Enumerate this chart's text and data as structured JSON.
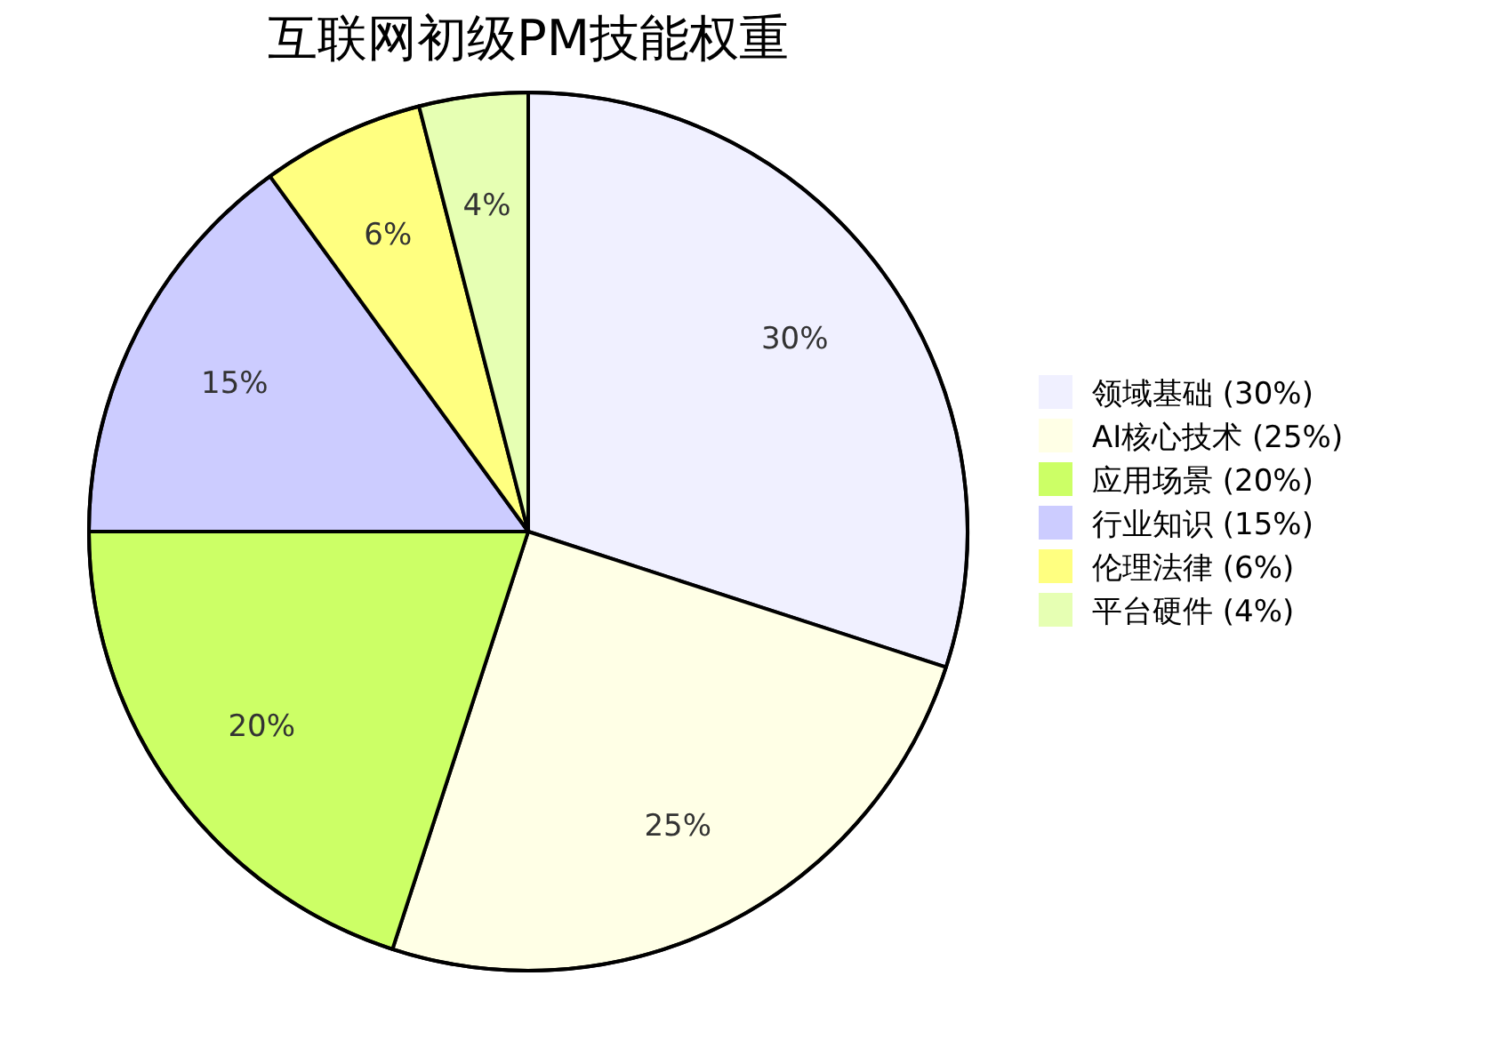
{
  "chart_data": {
    "type": "pie",
    "title": "互联网初级PM技能权重",
    "categories": [
      "领域基础 (30%)",
      "AI核心技术 (25%)",
      "应用场景 (20%)",
      "行业知识 (15%)",
      "伦理法律 (6%)",
      "平台硬件 (4%)"
    ],
    "values": [
      30,
      25,
      20,
      15,
      6,
      4
    ],
    "value_labels": [
      "30%",
      "25%",
      "20%",
      "15%",
      "6%",
      "4%"
    ],
    "colors": [
      "#f0f0ff",
      "#ffffe6",
      "#ccff66",
      "#ccccff",
      "#ffff80",
      "#e6ffb3"
    ],
    "legend": "right"
  }
}
